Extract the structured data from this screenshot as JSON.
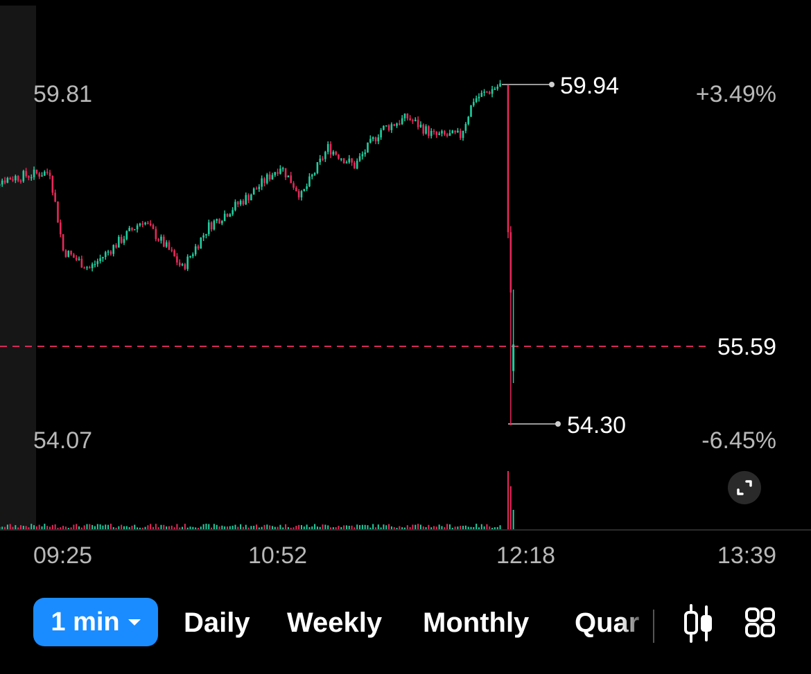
{
  "price_axis": {
    "top_left_price": "59.81",
    "bottom_left_price": "54.07",
    "top_right_pct": "+3.49%",
    "bottom_right_pct": "-6.45%",
    "current_price": "55.59",
    "high_marker": "59.94",
    "low_marker": "54.30"
  },
  "time_axis": [
    "09:25",
    "10:52",
    "12:18",
    "13:39"
  ],
  "timeframes": {
    "interval": "1 min",
    "tabs": [
      "Daily",
      "Weekly",
      "Monthly",
      "Quar"
    ]
  },
  "icons": {
    "expand": "expand-icon",
    "candle_type": "candlestick-icon",
    "indicators": "grid-icon"
  },
  "colors": {
    "up": "#1fcf9f",
    "down": "#e8285a",
    "accent": "#1a8cff",
    "current_price_line": "#d6285a"
  },
  "chart_data": {
    "type": "candlestick",
    "interval": "1 min",
    "x_ticks": [
      "09:25",
      "10:52",
      "12:18",
      "13:39"
    ],
    "y_labels": [
      "59.81",
      "54.07"
    ],
    "ylim": [
      54.07,
      59.81
    ],
    "high": 59.94,
    "low": 54.3,
    "current": 55.59,
    "change_range_pct": [
      "+3.49%",
      "-6.45%"
    ],
    "close_path": [
      {
        "t": "09:00",
        "p": 58.3
      },
      {
        "t": "09:10",
        "p": 58.4
      },
      {
        "t": "09:25",
        "p": 58.5
      },
      {
        "t": "09:30",
        "p": 57.2
      },
      {
        "t": "09:40",
        "p": 56.9
      },
      {
        "t": "09:50",
        "p": 57.3
      },
      {
        "t": "10:00",
        "p": 57.7
      },
      {
        "t": "10:10",
        "p": 57.2
      },
      {
        "t": "10:15",
        "p": 56.9
      },
      {
        "t": "10:25",
        "p": 57.6
      },
      {
        "t": "10:40",
        "p": 58.1
      },
      {
        "t": "10:52",
        "p": 58.6
      },
      {
        "t": "11:00",
        "p": 58.1
      },
      {
        "t": "11:10",
        "p": 58.9
      },
      {
        "t": "11:20",
        "p": 58.6
      },
      {
        "t": "11:30",
        "p": 59.2
      },
      {
        "t": "11:40",
        "p": 59.4
      },
      {
        "t": "11:50",
        "p": 59.1
      },
      {
        "t": "12:00",
        "p": 59.1
      },
      {
        "t": "12:05",
        "p": 59.7
      },
      {
        "t": "12:15",
        "p": 59.94
      },
      {
        "t": "12:18",
        "p": 57.5
      },
      {
        "t": "12:19",
        "p": 54.3
      },
      {
        "t": "12:20",
        "p": 55.59
      }
    ],
    "volume_spike_at": "12:18"
  }
}
